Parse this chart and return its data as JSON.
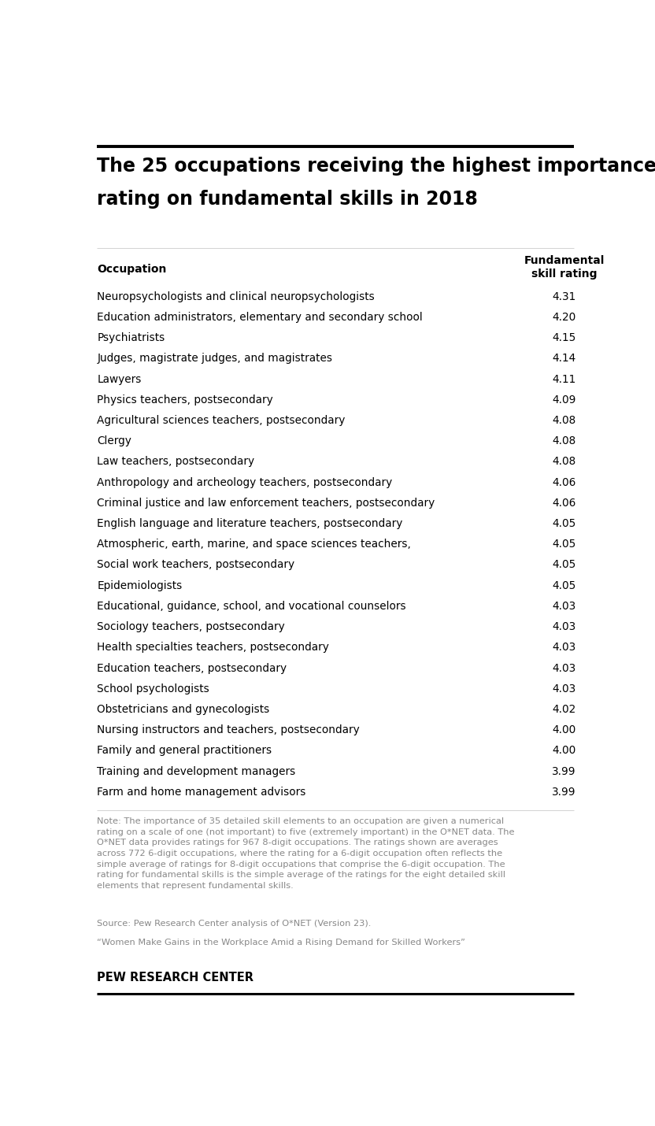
{
  "title_line1": "The 25 occupations receiving the highest importance",
  "title_line2": "rating on fundamental skills in 2018",
  "col_header_left": "Occupation",
  "col_header_right": "Fundamental\nskill rating",
  "occupations": [
    "Neuropsychologists and clinical neuropsychologists",
    "Education administrators, elementary and secondary school",
    "Psychiatrists",
    "Judges, magistrate judges, and magistrates",
    "Lawyers",
    "Physics teachers, postsecondary",
    "Agricultural sciences teachers, postsecondary",
    "Clergy",
    "Law teachers, postsecondary",
    "Anthropology and archeology teachers, postsecondary",
    "Criminal justice and law enforcement teachers, postsecondary",
    "English language and literature teachers, postsecondary",
    "Atmospheric, earth, marine, and space sciences teachers,",
    "Social work teachers, postsecondary",
    "Epidemiologists",
    "Educational, guidance, school, and vocational counselors",
    "Sociology teachers, postsecondary",
    "Health specialties teachers, postsecondary",
    "Education teachers, postsecondary",
    "School psychologists",
    "Obstetricians and gynecologists",
    "Nursing instructors and teachers, postsecondary",
    "Family and general practitioners",
    "Training and development managers",
    "Farm and home management advisors"
  ],
  "ratings": [
    4.31,
    4.2,
    4.15,
    4.14,
    4.11,
    4.09,
    4.08,
    4.08,
    4.08,
    4.06,
    4.06,
    4.05,
    4.05,
    4.05,
    4.05,
    4.03,
    4.03,
    4.03,
    4.03,
    4.03,
    4.02,
    4.0,
    4.0,
    3.99,
    3.99
  ],
  "note_text": "Note: The importance of 35 detailed skill elements to an occupation are given a numerical\nrating on a scale of one (not important) to five (extremely important) in the O*NET data. The\nO*NET data provides ratings for 967 8-digit occupations. The ratings shown are averages\nacross 772 6-digit occupations, where the rating for a 6-digit occupation often reflects the\nsimple average of ratings for 8-digit occupations that comprise the 6-digit occupation. The\nrating for fundamental skills is the simple average of the ratings for the eight detailed skill\nelements that represent fundamental skills.",
  "source_text": "Source: Pew Research Center analysis of O*NET (Version 23).",
  "quote_text": "“Women Make Gains in the Workplace Amid a Rising Demand for Skilled Workers”",
  "branding": "PEW RESEARCH CENTER",
  "bg_color": "#ffffff",
  "title_color": "#000000",
  "header_color": "#000000",
  "data_color": "#000000",
  "note_color": "#888888",
  "branding_color": "#000000",
  "top_line_color": "#000000",
  "bottom_line_color": "#000000",
  "divider_color": "#cccccc"
}
